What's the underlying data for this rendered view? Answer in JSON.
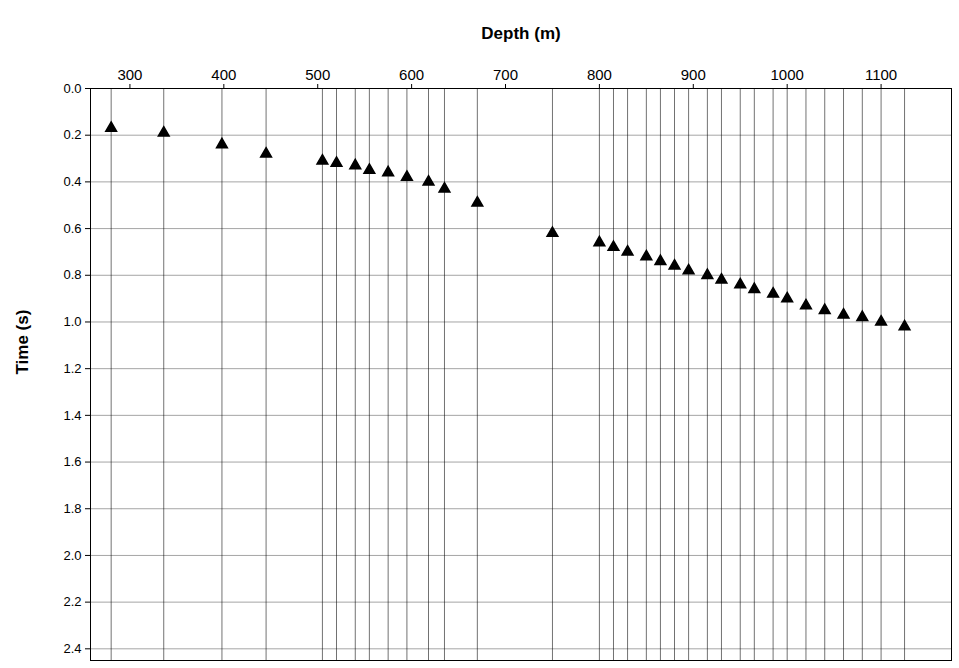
{
  "chart_data": {
    "type": "scatter",
    "xlabel": "Depth (m)",
    "ylabel": "Time (s)",
    "x": [
      280,
      336,
      398,
      445,
      505,
      520,
      540,
      555,
      575,
      595,
      618,
      635,
      670,
      750,
      800,
      815,
      830,
      850,
      865,
      880,
      895,
      915,
      930,
      950,
      965,
      985,
      1000,
      1020,
      1040,
      1060,
      1080,
      1100,
      1125
    ],
    "values": [
      0.17,
      0.19,
      0.24,
      0.28,
      0.31,
      0.32,
      0.33,
      0.35,
      0.36,
      0.38,
      0.4,
      0.43,
      0.49,
      0.62,
      0.66,
      0.68,
      0.7,
      0.72,
      0.74,
      0.76,
      0.78,
      0.8,
      0.82,
      0.84,
      0.86,
      0.88,
      0.9,
      0.93,
      0.95,
      0.97,
      0.98,
      1.0,
      1.02
    ],
    "xlim": [
      258,
      1175
    ],
    "ylim": [
      0,
      2.45
    ],
    "xticks": [
      300,
      400,
      500,
      600,
      700,
      800,
      900,
      1000,
      1100
    ],
    "yticks": [
      {
        "value": 0,
        "label": "0.0"
      },
      {
        "value": 0.2,
        "label": "0.2"
      },
      {
        "value": 0.4,
        "label": "0.4"
      },
      {
        "value": 0.6,
        "label": "0.6"
      },
      {
        "value": 0.8,
        "label": "0.8"
      },
      {
        "value": 1.0,
        "label": "1.0"
      },
      {
        "value": 1.2,
        "label": "1.2"
      },
      {
        "value": 1.4,
        "label": "1.4"
      },
      {
        "value": 1.6,
        "label": "1.6"
      },
      {
        "value": 1.8,
        "label": "1.8"
      },
      {
        "value": 2.0,
        "label": "2.0"
      },
      {
        "value": 2.2,
        "label": "2.2"
      },
      {
        "value": 2.4,
        "label": "2.4"
      }
    ],
    "grid": true,
    "marker": "triangle",
    "color": "#000000"
  }
}
